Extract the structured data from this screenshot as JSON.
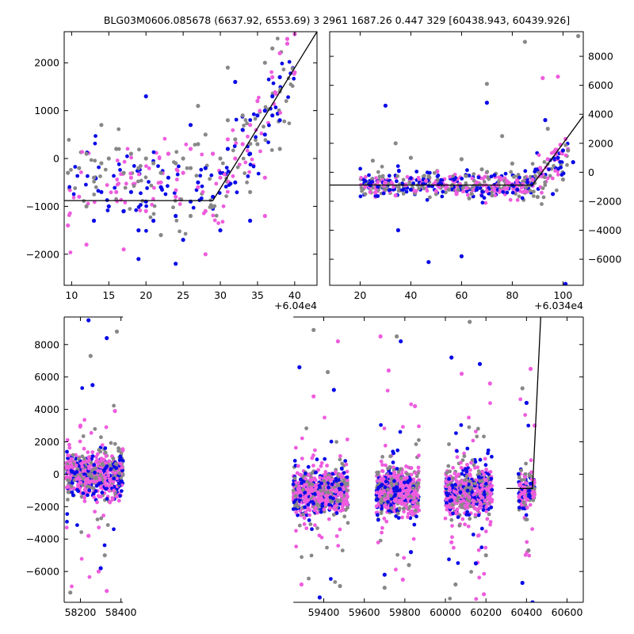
{
  "figure": {
    "title": "BLG03M0606.085678 (6637.92, 6553.69)   3 2961 1687.26 0.447 329 [60438.943, 60439.926]"
  },
  "colors": {
    "series_gray": "#888888",
    "series_blue": "#0a0ae8",
    "series_pink": "#ee5cdd",
    "model_line": "#000000",
    "axis": "#000000",
    "background": "#ffffff"
  },
  "chart_data": [
    {
      "type": "scatter",
      "panel": "top-left",
      "x_offset_label": "+6.04e4",
      "xticks": [
        10,
        15,
        20,
        25,
        30,
        35,
        40
      ],
      "xlim": [
        9,
        43
      ],
      "yticks": [
        -2000,
        -1000,
        0,
        1000,
        2000
      ],
      "ylim": [
        -2650,
        2650
      ],
      "ytick_side": "left",
      "model_line": {
        "x": [
          9,
          29,
          43
        ],
        "y": [
          -880,
          -880,
          2650
        ]
      },
      "series": [
        {
          "color_key": "series_gray",
          "points": [
            [
              9.5,
              -300
            ],
            [
              11,
              -200
            ],
            [
              12,
              100
            ],
            [
              13,
              -400
            ],
            [
              14,
              -100
            ],
            [
              15,
              0
            ],
            [
              16,
              200
            ],
            [
              17,
              -300
            ],
            [
              18,
              100
            ],
            [
              19,
              -200
            ],
            [
              20,
              0
            ],
            [
              21,
              -100
            ],
            [
              22,
              -300
            ],
            [
              23,
              100
            ],
            [
              24,
              -100
            ],
            [
              25,
              0
            ],
            [
              26,
              -200
            ],
            [
              27,
              300
            ],
            [
              28,
              500
            ],
            [
              29,
              100
            ],
            [
              30,
              0
            ],
            [
              31,
              800
            ],
            [
              32,
              400
            ],
            [
              33,
              900
            ],
            [
              35,
              300
            ],
            [
              36,
              2000
            ],
            [
              37,
              2300
            ],
            [
              14,
              700
            ],
            [
              27,
              1100
            ],
            [
              31,
              1900
            ],
            [
              38,
              200
            ],
            [
              22,
              -1600
            ],
            [
              26,
              -1200
            ],
            [
              12,
              -1000
            ],
            [
              34,
              -700
            ],
            [
              38,
              1400
            ]
          ]
        },
        {
          "color_key": "series_blue",
          "points": [
            [
              13,
              -1300
            ],
            [
              14,
              -700
            ],
            [
              15,
              -1000
            ],
            [
              17,
              -1100
            ],
            [
              18,
              -700
            ],
            [
              19,
              -1500
            ],
            [
              20,
              -900
            ],
            [
              21,
              -1300
            ],
            [
              22,
              -600
            ],
            [
              23,
              -400
            ],
            [
              24,
              -1200
            ],
            [
              25,
              -1700
            ],
            [
              26,
              -900
            ],
            [
              27,
              -500
            ],
            [
              28,
              -200
            ],
            [
              29,
              -800
            ],
            [
              30,
              -300
            ],
            [
              31,
              200
            ],
            [
              32,
              -500
            ],
            [
              33,
              600
            ],
            [
              34,
              100
            ],
            [
              35,
              900
            ],
            [
              36,
              500
            ],
            [
              37,
              1300
            ],
            [
              38,
              1700
            ],
            [
              19,
              -2100
            ],
            [
              24,
              -2200
            ],
            [
              30,
              -1500
            ],
            [
              34,
              -1300
            ],
            [
              20,
              1300
            ],
            [
              26,
              700
            ],
            [
              32,
              1600
            ],
            [
              36,
              1000
            ],
            [
              37,
              900
            ],
            [
              38,
              800
            ]
          ]
        },
        {
          "color_key": "series_pink",
          "points": [
            [
              9.5,
              -1400
            ],
            [
              11,
              -800
            ],
            [
              12,
              -1800
            ],
            [
              16,
              -700
            ],
            [
              18,
              -400
            ],
            [
              20,
              -1100
            ],
            [
              22,
              -500
            ],
            [
              23,
              100
            ],
            [
              24,
              -800
            ],
            [
              25,
              -300
            ],
            [
              26,
              200
            ],
            [
              27,
              -600
            ],
            [
              28,
              -1100
            ],
            [
              29,
              100
            ],
            [
              30,
              -400
            ],
            [
              31,
              400
            ],
            [
              32,
              0
            ],
            [
              33,
              300
            ],
            [
              34,
              700
            ],
            [
              35,
              1200
            ],
            [
              36,
              -400
            ],
            [
              37,
              1700
            ],
            [
              38,
              2200
            ],
            [
              39,
              2400
            ],
            [
              40,
              1800
            ],
            [
              28,
              -2000
            ],
            [
              17,
              -1900
            ],
            [
              36,
              -1200
            ],
            [
              39,
              2500
            ],
            [
              40,
              2600
            ]
          ]
        }
      ]
    },
    {
      "type": "scatter",
      "panel": "top-right",
      "x_offset_label": "+6.034e4",
      "xticks": [
        20,
        40,
        60,
        80,
        100
      ],
      "xlim": [
        8,
        108
      ],
      "yticks": [
        -6000,
        -4000,
        -2000,
        0,
        2000,
        4000,
        6000,
        8000
      ],
      "ylim": [
        -7800,
        9700
      ],
      "ytick_side": "right",
      "model_line": {
        "x": [
          8,
          88,
          108
        ],
        "y": [
          -880,
          -880,
          3900
        ]
      },
      "series": [
        {
          "color_key": "series_gray",
          "points": [
            [
              22,
              -1500
            ],
            [
              25,
              800
            ],
            [
              30,
              -1200
            ],
            [
              34,
              2000
            ],
            [
              40,
              1000
            ],
            [
              45,
              -300
            ],
            [
              50,
              -1500
            ],
            [
              55,
              -1200
            ],
            [
              60,
              900
            ],
            [
              64,
              -1500
            ],
            [
              68,
              200
            ],
            [
              72,
              -1600
            ],
            [
              76,
              2500
            ],
            [
              80,
              600
            ],
            [
              85,
              9000
            ],
            [
              90,
              -1700
            ],
            [
              94,
              3000
            ],
            [
              100,
              -500
            ],
            [
              102,
              1500
            ],
            [
              106,
              9400
            ],
            [
              70,
              6100
            ],
            [
              63,
              -1800
            ]
          ]
        },
        {
          "color_key": "series_blue",
          "points": [
            [
              22,
              -600
            ],
            [
              27,
              -1000
            ],
            [
              30,
              4600
            ],
            [
              35,
              -4000
            ],
            [
              40,
              -1200
            ],
            [
              45,
              -500
            ],
            [
              47,
              -6200
            ],
            [
              52,
              -800
            ],
            [
              57,
              -500
            ],
            [
              60,
              -5800
            ],
            [
              66,
              -1200
            ],
            [
              70,
              4800
            ],
            [
              73,
              -200
            ],
            [
              80,
              -900
            ],
            [
              82,
              -1200
            ],
            [
              86,
              -700
            ],
            [
              90,
              200
            ],
            [
              93,
              3600
            ],
            [
              96,
              -1500
            ],
            [
              98,
              1000
            ],
            [
              100,
              1500
            ],
            [
              101,
              -7700
            ],
            [
              104,
              700
            ]
          ]
        },
        {
          "color_key": "series_pink",
          "points": [
            [
              22,
              -1000
            ],
            [
              26,
              -1400
            ],
            [
              30,
              -700
            ],
            [
              34,
              -1600
            ],
            [
              38,
              -900
            ],
            [
              42,
              -1300
            ],
            [
              46,
              -600
            ],
            [
              50,
              -1300
            ],
            [
              54,
              -900
            ],
            [
              58,
              -1500
            ],
            [
              62,
              -1100
            ],
            [
              66,
              -700
            ],
            [
              70,
              -1300
            ],
            [
              74,
              -900
            ],
            [
              78,
              -1100
            ],
            [
              82,
              -800
            ],
            [
              85,
              -1300
            ],
            [
              88,
              -500
            ],
            [
              91,
              300
            ],
            [
              94,
              900
            ],
            [
              97,
              1500
            ],
            [
              99,
              1900
            ],
            [
              101,
              2300
            ],
            [
              92,
              6500
            ],
            [
              98,
              6600
            ]
          ]
        }
      ]
    },
    {
      "type": "scatter",
      "panel": "bottom",
      "xticks": [
        58200,
        58400,
        59400,
        59600,
        59800,
        60000,
        60200,
        60400,
        60600
      ],
      "xlim": [
        58120,
        60680
      ],
      "axis_break": [
        58410,
        59250
      ],
      "yticks": [
        -6000,
        -4000,
        -2000,
        0,
        2000,
        4000,
        6000,
        8000
      ],
      "ylim": [
        -7900,
        9700
      ],
      "ytick_side": "left",
      "model_line": {
        "x": [
          60300,
          60430,
          60470
        ],
        "y": [
          -880,
          -880,
          9700
        ]
      },
      "seasons": [
        [
          58130,
          58410
        ],
        [
          59250,
          59520
        ],
        [
          59660,
          59870
        ],
        [
          60000,
          60230
        ],
        [
          60360,
          60440
        ]
      ],
      "series": [
        {
          "color_key": "series_gray",
          "points": [
            [
              58150,
              -7300
            ],
            [
              58250,
              7300
            ],
            [
              58320,
              -5000
            ],
            [
              58380,
              8800
            ],
            [
              59350,
              8900
            ],
            [
              59420,
              6300
            ],
            [
              59480,
              -6900
            ],
            [
              59700,
              -7000
            ],
            [
              59760,
              8500
            ],
            [
              59820,
              -5600
            ],
            [
              60050,
              -6800
            ],
            [
              60120,
              9400
            ],
            [
              60200,
              -5000
            ],
            [
              60380,
              5300
            ],
            [
              60410,
              -4700
            ]
          ]
        },
        {
          "color_key": "series_blue",
          "points": [
            [
              58240,
              9500
            ],
            [
              58260,
              5500
            ],
            [
              58300,
              -5800
            ],
            [
              58330,
              8400
            ],
            [
              59280,
              6600
            ],
            [
              59380,
              -7600
            ],
            [
              59450,
              5200
            ],
            [
              59700,
              -6200
            ],
            [
              59780,
              8200
            ],
            [
              59830,
              -4800
            ],
            [
              60030,
              7200
            ],
            [
              60150,
              -5500
            ],
            [
              60170,
              6800
            ],
            [
              60380,
              -6700
            ],
            [
              60400,
              4400
            ],
            [
              60430,
              -7900
            ]
          ]
        },
        {
          "color_key": "series_pink",
          "points": [
            [
              58200,
              3000
            ],
            [
              58240,
              -3800
            ],
            [
              58290,
              -6000
            ],
            [
              58330,
              -7200
            ],
            [
              58370,
              3900
            ],
            [
              59290,
              -6800
            ],
            [
              59350,
              4800
            ],
            [
              59470,
              8200
            ],
            [
              59680,
              8500
            ],
            [
              59720,
              6400
            ],
            [
              59790,
              -6500
            ],
            [
              59850,
              4200
            ],
            [
              60030,
              -4200
            ],
            [
              60080,
              6200
            ],
            [
              60190,
              -7400
            ],
            [
              60220,
              5600
            ],
            [
              60420,
              6500
            ],
            [
              60440,
              3000
            ]
          ]
        }
      ]
    }
  ]
}
